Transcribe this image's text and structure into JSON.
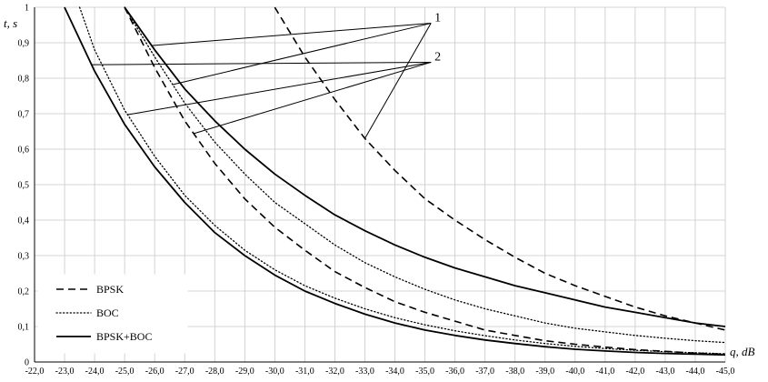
{
  "chart_data": {
    "type": "line",
    "title": "",
    "xlabel": "q, dB",
    "ylabel": "t, s",
    "xlim": [
      -22,
      -45
    ],
    "ylim": [
      0,
      1
    ],
    "grid": true,
    "legend_position": "bottom-left",
    "x_ticks": [
      "-22,0",
      "-23,0",
      "-24,0",
      "-25,0",
      "-26,0",
      "-27,0",
      "-28,0",
      "-29,0",
      "-30,0",
      "-31,0",
      "-32,0",
      "-33,0",
      "-34,0",
      "-35,0",
      "-36,0",
      "-37,0",
      "-38,0",
      "-39,0",
      "-40,0",
      "-41,0",
      "-42,0",
      "-43,0",
      "-44,0",
      "-45,0"
    ],
    "y_ticks": [
      "0",
      "0,1",
      "0,2",
      "0,3",
      "0,4",
      "0,5",
      "0,6",
      "0,7",
      "0,8",
      "0,9",
      "1"
    ],
    "legend": [
      {
        "label": "BPSK",
        "style": "dashed"
      },
      {
        "label": "BOC",
        "style": "dotted"
      },
      {
        "label": "BPSK+BOC",
        "style": "solid"
      }
    ],
    "annotations": [
      {
        "label": "1",
        "x": -35.2,
        "y": 0.955
      },
      {
        "label": "2",
        "x": -35.2,
        "y": 0.845
      }
    ],
    "series": [
      {
        "group": "1",
        "style": "dashed",
        "points": [
          [
            -30.0,
            1.0
          ],
          [
            -31.0,
            0.86
          ],
          [
            -32.0,
            0.74
          ],
          [
            -33.0,
            0.63
          ],
          [
            -34.0,
            0.54
          ],
          [
            -35.0,
            0.46
          ],
          [
            -36.0,
            0.4
          ],
          [
            -37.0,
            0.345
          ],
          [
            -38.0,
            0.295
          ],
          [
            -39.0,
            0.25
          ],
          [
            -40.0,
            0.215
          ],
          [
            -41.0,
            0.185
          ],
          [
            -42.0,
            0.155
          ],
          [
            -43.0,
            0.13
          ],
          [
            -44.0,
            0.11
          ],
          [
            -45.0,
            0.09
          ]
        ]
      },
      {
        "group": "1",
        "style": "dotted",
        "points": [
          [
            -25.0,
            1.0
          ],
          [
            -26.0,
            0.86
          ],
          [
            -27.0,
            0.73
          ],
          [
            -28.0,
            0.62
          ],
          [
            -29.0,
            0.53
          ],
          [
            -30.0,
            0.45
          ],
          [
            -31.0,
            0.39
          ],
          [
            -32.0,
            0.33
          ],
          [
            -33.0,
            0.28
          ],
          [
            -34.0,
            0.24
          ],
          [
            -35.0,
            0.205
          ],
          [
            -36.0,
            0.175
          ],
          [
            -37.0,
            0.15
          ],
          [
            -38.0,
            0.13
          ],
          [
            -39.0,
            0.11
          ],
          [
            -40.0,
            0.095
          ],
          [
            -41.0,
            0.085
          ],
          [
            -42.0,
            0.075
          ],
          [
            -43.0,
            0.067
          ],
          [
            -44.0,
            0.06
          ],
          [
            -45.0,
            0.055
          ]
        ]
      },
      {
        "group": "1",
        "style": "solid",
        "points": [
          [
            -25.0,
            1.0
          ],
          [
            -26.0,
            0.88
          ],
          [
            -27.0,
            0.77
          ],
          [
            -28.0,
            0.68
          ],
          [
            -29.0,
            0.6
          ],
          [
            -30.0,
            0.53
          ],
          [
            -31.0,
            0.47
          ],
          [
            -32.0,
            0.415
          ],
          [
            -33.0,
            0.37
          ],
          [
            -34.0,
            0.33
          ],
          [
            -35.0,
            0.295
          ],
          [
            -36.0,
            0.265
          ],
          [
            -37.0,
            0.24
          ],
          [
            -38.0,
            0.215
          ],
          [
            -39.0,
            0.195
          ],
          [
            -40.0,
            0.175
          ],
          [
            -41.0,
            0.155
          ],
          [
            -42.0,
            0.14
          ],
          [
            -43.0,
            0.125
          ],
          [
            -44.0,
            0.11
          ],
          [
            -45.0,
            0.1
          ]
        ]
      },
      {
        "group": "2",
        "style": "dashed",
        "points": [
          [
            -25.0,
            1.0
          ],
          [
            -26.0,
            0.83
          ],
          [
            -27.0,
            0.68
          ],
          [
            -28.0,
            0.56
          ],
          [
            -29.0,
            0.46
          ],
          [
            -30.0,
            0.38
          ],
          [
            -31.0,
            0.315
          ],
          [
            -32.0,
            0.255
          ],
          [
            -33.0,
            0.21
          ],
          [
            -34.0,
            0.17
          ],
          [
            -35.0,
            0.14
          ],
          [
            -36.0,
            0.115
          ],
          [
            -37.0,
            0.09
          ],
          [
            -38.0,
            0.075
          ],
          [
            -39.0,
            0.06
          ],
          [
            -40.0,
            0.05
          ],
          [
            -41.0,
            0.042
          ],
          [
            -42.0,
            0.035
          ],
          [
            -43.0,
            0.03
          ],
          [
            -44.0,
            0.025
          ],
          [
            -45.0,
            0.022
          ]
        ]
      },
      {
        "group": "2",
        "style": "dotted",
        "points": [
          [
            -23.5,
            1.0
          ],
          [
            -24.0,
            0.88
          ],
          [
            -25.0,
            0.71
          ],
          [
            -26.0,
            0.58
          ],
          [
            -27.0,
            0.47
          ],
          [
            -28.0,
            0.385
          ],
          [
            -29.0,
            0.315
          ],
          [
            -30.0,
            0.26
          ],
          [
            -31.0,
            0.215
          ],
          [
            -32.0,
            0.18
          ],
          [
            -33.0,
            0.15
          ],
          [
            -34.0,
            0.125
          ],
          [
            -35.0,
            0.105
          ],
          [
            -36.0,
            0.088
          ],
          [
            -37.0,
            0.074
          ],
          [
            -38.0,
            0.062
          ],
          [
            -39.0,
            0.052
          ],
          [
            -40.0,
            0.044
          ],
          [
            -41.0,
            0.038
          ],
          [
            -42.0,
            0.033
          ],
          [
            -43.0,
            0.029
          ],
          [
            -44.0,
            0.026
          ],
          [
            -45.0,
            0.023
          ]
        ]
      },
      {
        "group": "2",
        "style": "solid",
        "points": [
          [
            -23.0,
            1.0
          ],
          [
            -24.0,
            0.82
          ],
          [
            -25.0,
            0.67
          ],
          [
            -26.0,
            0.55
          ],
          [
            -27.0,
            0.45
          ],
          [
            -28.0,
            0.365
          ],
          [
            -29.0,
            0.3
          ],
          [
            -30.0,
            0.245
          ],
          [
            -31.0,
            0.2
          ],
          [
            -32.0,
            0.165
          ],
          [
            -33.0,
            0.135
          ],
          [
            -34.0,
            0.11
          ],
          [
            -35.0,
            0.09
          ],
          [
            -36.0,
            0.075
          ],
          [
            -37.0,
            0.062
          ],
          [
            -38.0,
            0.052
          ],
          [
            -39.0,
            0.043
          ],
          [
            -40.0,
            0.036
          ],
          [
            -41.0,
            0.031
          ],
          [
            -42.0,
            0.027
          ],
          [
            -43.0,
            0.024
          ],
          [
            -44.0,
            0.022
          ],
          [
            -45.0,
            0.02
          ]
        ]
      }
    ]
  }
}
